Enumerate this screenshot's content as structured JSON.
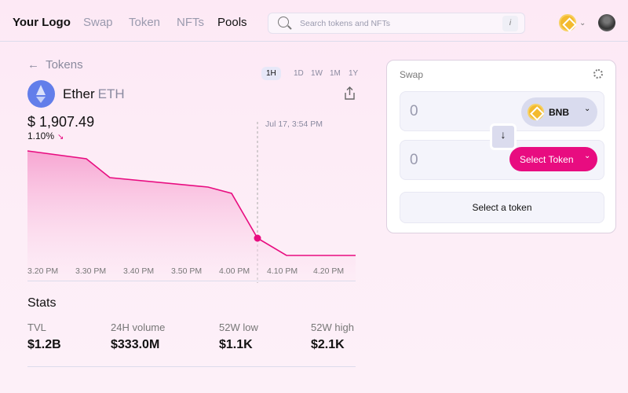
{
  "nav": {
    "logo": "Your Logo",
    "links": [
      "Swap",
      "Token",
      "NFTs",
      "Pools"
    ],
    "active": "Pools",
    "search_placeholder": "Search tokens and NFTs",
    "search_hint": "i",
    "chain_icon": "bnb-icon"
  },
  "token": {
    "back_label": "Tokens",
    "name": "Ether",
    "symbol": "ETH",
    "price": "$ 1,907.49",
    "change": "1.10%",
    "change_arrow": "↘",
    "timeframes": [
      "1H",
      "1D",
      "1W",
      "1M",
      "1Y"
    ],
    "selected_timeframe": "1H",
    "hover_time": "Jul 17, 3:54 PM"
  },
  "chart_data": {
    "type": "area",
    "x_ticks": [
      "3.20 PM",
      "3.30 PM",
      "3.40 PM",
      "3.50 PM",
      "4.00 PM",
      "4.10 PM",
      "4.20 PM"
    ],
    "color": "#e80c80"
  },
  "stats": {
    "title": "Stats",
    "items": [
      {
        "label": "TVL",
        "value": "$1.2B"
      },
      {
        "label": "24H volume",
        "value": "$333.0M"
      },
      {
        "label": "52W low",
        "value": "$1.1K"
      },
      {
        "label": "52W high",
        "value": "$2.1K"
      }
    ]
  },
  "swap": {
    "title": "Swap",
    "from_amount": "0",
    "from_token": "BNB",
    "to_amount": "0",
    "select_token_label": "Select Token",
    "action_label": "Select a token"
  }
}
